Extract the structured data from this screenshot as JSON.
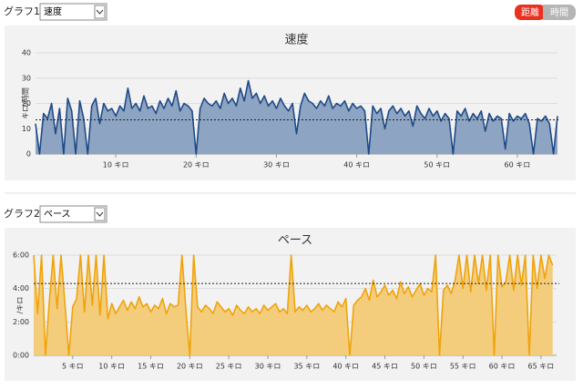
{
  "controls": {
    "graph1_label": "グラフ1:",
    "graph1_select": "速度",
    "graph2_label": "グラフ2:",
    "graph2_select": "ペース",
    "toggle": [
      "距離",
      "時間"
    ]
  },
  "chart_data": [
    {
      "type": "area",
      "title": "速度",
      "y_label": "キロ/時間",
      "color": "#1f4a87",
      "fill": "#8da4c2",
      "grid": true,
      "average_line": 13.5,
      "xlim": [
        0,
        65
      ],
      "xticks": [
        {
          "value": 10,
          "label": "10 キロ"
        },
        {
          "value": 20,
          "label": "20 キロ"
        },
        {
          "value": 30,
          "label": "30 キロ"
        },
        {
          "value": 40,
          "label": "40 キロ"
        },
        {
          "value": 50,
          "label": "50 キロ"
        },
        {
          "value": 60,
          "label": "60 キロ"
        }
      ],
      "ylim": [
        0,
        40
      ],
      "yticks": [
        0,
        10,
        20,
        30,
        40
      ],
      "x": [
        0,
        0.5,
        1,
        1.5,
        2,
        2.5,
        3,
        3.5,
        4,
        4.5,
        5,
        5.5,
        6,
        6.5,
        7,
        7.5,
        8,
        8.5,
        9,
        9.5,
        10,
        10.5,
        11,
        11.5,
        12,
        12.5,
        13,
        13.5,
        14,
        14.5,
        15,
        15.5,
        16,
        16.5,
        17,
        17.5,
        18,
        18.5,
        19,
        19.5,
        20,
        20.5,
        21,
        21.5,
        22,
        22.5,
        23,
        23.5,
        24,
        24.5,
        25,
        25.5,
        26,
        26.5,
        27,
        27.5,
        28,
        28.5,
        29,
        29.5,
        30,
        30.5,
        31,
        31.5,
        32,
        32.5,
        33,
        33.5,
        34,
        34.5,
        35,
        35.5,
        36,
        36.5,
        37,
        37.5,
        38,
        38.5,
        39,
        39.5,
        40,
        40.5,
        41,
        41.5,
        42,
        42.5,
        43,
        43.5,
        44,
        44.5,
        45,
        45.5,
        46,
        46.5,
        47,
        47.5,
        48,
        48.5,
        49,
        49.5,
        50,
        50.5,
        51,
        51.5,
        52,
        52.5,
        53,
        53.5,
        54,
        54.5,
        55,
        55.5,
        56,
        56.5,
        57,
        57.5,
        58,
        58.5,
        59,
        59.5,
        60,
        60.5,
        61,
        61.5,
        62,
        62.5,
        63,
        63.5,
        64,
        64.5,
        65
      ],
      "values": [
        12,
        0,
        16,
        14,
        20,
        8,
        18,
        0,
        22,
        17,
        0,
        21,
        14,
        0,
        19,
        22,
        12,
        20,
        17,
        18,
        15,
        19,
        17,
        26,
        18,
        20,
        17,
        23,
        18,
        19,
        16,
        21,
        18,
        22,
        19,
        25,
        17,
        20,
        19,
        17,
        0,
        18,
        22,
        20,
        19,
        21,
        18,
        24,
        20,
        22,
        19,
        26,
        21,
        29,
        22,
        24,
        20,
        23,
        19,
        21,
        18,
        22,
        19,
        17,
        20,
        8,
        19,
        24,
        21,
        20,
        18,
        21,
        19,
        23,
        18,
        20,
        19,
        21,
        17,
        20,
        18,
        19,
        17,
        0,
        19,
        16,
        18,
        10,
        17,
        19,
        16,
        18,
        15,
        17,
        11,
        19,
        16,
        14,
        18,
        15,
        17,
        13,
        16,
        14,
        0,
        17,
        15,
        18,
        13,
        16,
        14,
        17,
        9,
        16,
        13,
        15,
        14,
        2,
        16,
        13,
        15,
        14,
        16,
        12,
        0,
        14,
        13,
        15,
        12,
        0,
        15
      ]
    },
    {
      "type": "area",
      "title": "ペース",
      "y_label": "/キロ",
      "color": "#f0a30a",
      "fill": "#f3cd7c",
      "grid": true,
      "average_line": 4.3,
      "xlim": [
        0,
        67
      ],
      "xticks": [
        {
          "value": 5,
          "label": "5 キロ"
        },
        {
          "value": 10,
          "label": "10 キロ"
        },
        {
          "value": 15,
          "label": "15 キロ"
        },
        {
          "value": 20,
          "label": "20 キロ"
        },
        {
          "value": 25,
          "label": "25 キロ"
        },
        {
          "value": 30,
          "label": "30 キロ"
        },
        {
          "value": 35,
          "label": "35 キロ"
        },
        {
          "value": 40,
          "label": "40 キロ"
        },
        {
          "value": 45,
          "label": "45 キロ"
        },
        {
          "value": 50,
          "label": "50 キロ"
        },
        {
          "value": 55,
          "label": "55 キロ"
        },
        {
          "value": 60,
          "label": "60 キロ"
        },
        {
          "value": 65,
          "label": "65 キロ"
        }
      ],
      "ylim": [
        0,
        6
      ],
      "yticks": [
        {
          "value": 0,
          "label": "0:00"
        },
        {
          "value": 2,
          "label": "2:00"
        },
        {
          "value": 4,
          "label": "4:00"
        },
        {
          "value": 6,
          "label": "6:00"
        }
      ],
      "x": [
        0,
        0.5,
        1,
        1.5,
        2,
        2.5,
        3,
        3.5,
        4,
        4.5,
        5,
        5.5,
        6,
        6.5,
        7,
        7.5,
        8,
        8.5,
        9,
        9.5,
        10,
        10.5,
        11,
        11.5,
        12,
        12.5,
        13,
        13.5,
        14,
        14.5,
        15,
        15.5,
        16,
        16.5,
        17,
        17.5,
        18,
        18.5,
        19,
        19.5,
        20,
        20.5,
        21,
        21.5,
        22,
        22.5,
        23,
        23.5,
        24,
        24.5,
        25,
        25.5,
        26,
        26.5,
        27,
        27.5,
        28,
        28.5,
        29,
        29.5,
        30,
        30.5,
        31,
        31.5,
        32,
        32.5,
        33,
        33.5,
        34,
        34.5,
        35,
        35.5,
        36,
        36.5,
        37,
        37.5,
        38,
        38.5,
        39,
        39.5,
        40,
        40.5,
        41,
        41.5,
        42,
        42.5,
        43,
        43.5,
        44,
        44.5,
        45,
        45.5,
        46,
        46.5,
        47,
        47.5,
        48,
        48.5,
        49,
        49.5,
        50,
        50.5,
        51,
        51.5,
        52,
        52.5,
        53,
        53.5,
        54,
        54.5,
        55,
        55.5,
        56,
        56.5,
        57,
        57.5,
        58,
        58.5,
        59,
        59.5,
        60,
        60.5,
        61,
        61.5,
        62,
        62.5,
        63,
        63.5,
        64,
        64.5,
        65,
        65.5,
        66,
        66.5
      ],
      "values": [
        6,
        2.5,
        6,
        0,
        3.2,
        6,
        2.8,
        6,
        3.1,
        0,
        2.9,
        3.4,
        6,
        2.6,
        6,
        3.0,
        6,
        2.4,
        6,
        2.2,
        3.1,
        2.5,
        2.9,
        3.3,
        2.7,
        3.2,
        2.8,
        3.5,
        2.9,
        3.1,
        2.6,
        3.0,
        2.8,
        3.4,
        2.5,
        3.1,
        2.9,
        3.0,
        6,
        2.7,
        0,
        6,
        2.9,
        2.6,
        3.0,
        2.8,
        2.5,
        3.2,
        2.9,
        2.6,
        2.8,
        2.4,
        3.0,
        2.7,
        2.5,
        2.9,
        2.6,
        2.8,
        2.5,
        3.0,
        2.7,
        2.9,
        3.1,
        2.6,
        2.8,
        2.5,
        6,
        2.6,
        2.9,
        2.7,
        3.0,
        2.6,
        2.8,
        3.1,
        2.7,
        3.0,
        2.8,
        2.6,
        3.2,
        2.9,
        3.4,
        0,
        3.0,
        3.3,
        3.5,
        4.0,
        3.3,
        4.5,
        3.5,
        3.8,
        4.2,
        3.6,
        3.9,
        3.4,
        4.4,
        3.7,
        4.1,
        3.5,
        3.9,
        4.3,
        3.6,
        4.0,
        3.8,
        6,
        0,
        3.9,
        4.2,
        3.7,
        4.5,
        6,
        4.0,
        6,
        3.8,
        6,
        4.3,
        6,
        3.9,
        6,
        0,
        6,
        4.1,
        4.4,
        6,
        3.9,
        6,
        4.2,
        6,
        0,
        6,
        4.0,
        6,
        4.6,
        6,
        5.4
      ]
    }
  ]
}
